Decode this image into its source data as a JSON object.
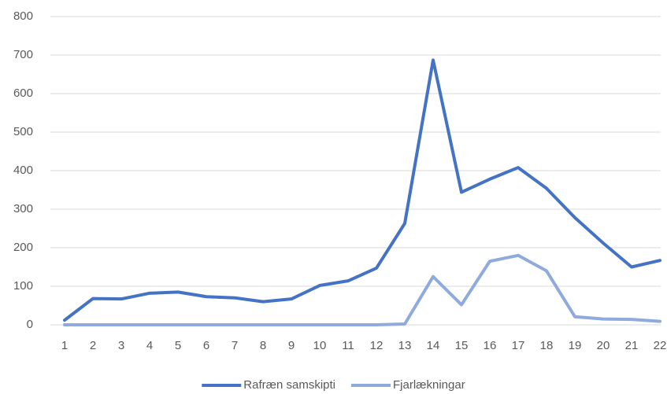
{
  "chart_data": {
    "type": "line",
    "categories": [
      "1",
      "2",
      "3",
      "4",
      "5",
      "6",
      "7",
      "8",
      "9",
      "10",
      "11",
      "12",
      "13",
      "14",
      "15",
      "16",
      "17",
      "18",
      "19",
      "20",
      "21",
      "22"
    ],
    "series": [
      {
        "name": "Rafræn samskipti",
        "color": "#4472c4",
        "values": [
          12,
          68,
          67,
          82,
          85,
          73,
          70,
          60,
          67,
          102,
          114,
          147,
          263,
          687,
          344,
          378,
          408,
          354,
          278,
          212,
          150,
          167
        ]
      },
      {
        "name": "Fjarlækningar",
        "color": "#8faadc",
        "values": [
          0,
          0,
          0,
          0,
          0,
          0,
          0,
          0,
          0,
          0,
          0,
          0,
          2,
          125,
          52,
          165,
          180,
          140,
          21,
          15,
          14,
          9
        ]
      }
    ],
    "ylim": [
      0,
      800
    ],
    "yticks": [
      0,
      100,
      200,
      300,
      400,
      500,
      600,
      700,
      800
    ],
    "grid": true,
    "legend": "bottom"
  }
}
